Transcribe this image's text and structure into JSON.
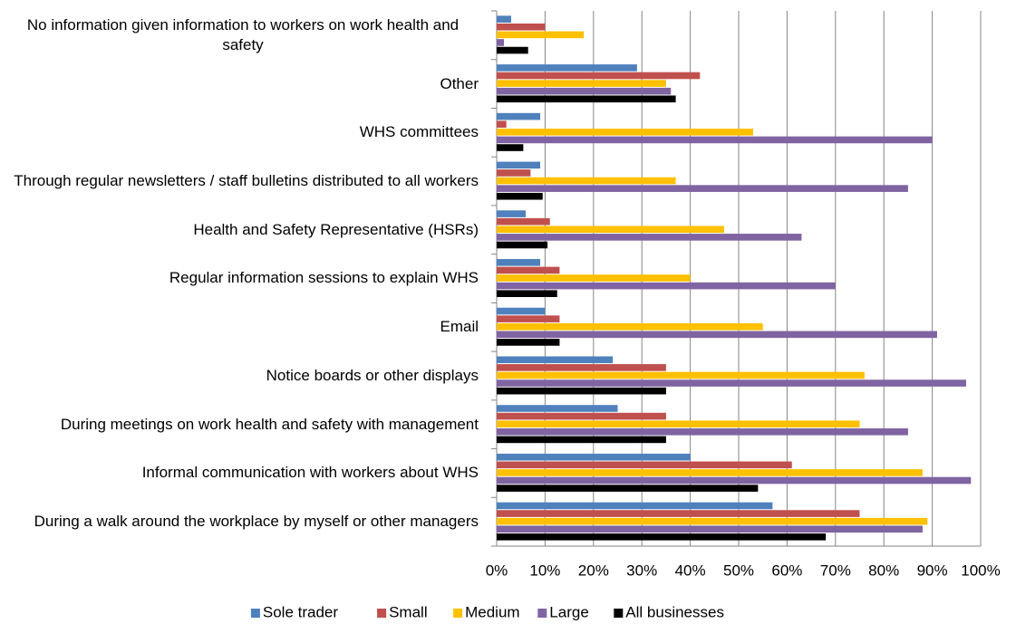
{
  "chart_data": {
    "type": "hbar",
    "categories": [
      "No information given information to workers on work health and safety",
      "Other",
      "WHS committees",
      "Through regular newsletters / staff bulletins distributed to all workers",
      "Health and Safety Representative (HSRs)",
      "Regular information sessions to explain WHS",
      "Email",
      "Notice boards or other displays",
      "During meetings on work health and safety with management",
      "Informal communication with workers about WHS",
      "During a walk around the workplace by myself or other managers"
    ],
    "series": [
      {
        "name": "Sole trader",
        "color": "#4f81bd",
        "values": [
          3,
          29,
          9,
          9,
          6,
          9,
          10,
          24,
          25,
          40,
          57
        ]
      },
      {
        "name": "Small",
        "color": "#c0504d",
        "values": [
          10,
          42,
          2,
          7,
          11,
          13,
          13,
          35,
          35,
          61,
          75
        ]
      },
      {
        "name": "Medium",
        "color": "#ffc000",
        "values": [
          18,
          35,
          53,
          37,
          47,
          40,
          55,
          76,
          75,
          88,
          89
        ]
      },
      {
        "name": "Large",
        "color": "#8064a2",
        "values": [
          1.5,
          36,
          90,
          85,
          63,
          70,
          91,
          97,
          85,
          98,
          88
        ]
      },
      {
        "name": "All businesses",
        "color": "#000000",
        "values": [
          6.5,
          37,
          5.5,
          9.5,
          10.5,
          12.5,
          13,
          35,
          35,
          54,
          68
        ]
      }
    ],
    "xlim": [
      0,
      100
    ],
    "xticks": [
      {
        "value": 0,
        "label": "0%"
      },
      {
        "value": 10,
        "label": "10%"
      },
      {
        "value": 20,
        "label": "20%"
      },
      {
        "value": 30,
        "label": "30%"
      },
      {
        "value": 40,
        "label": "40%"
      },
      {
        "value": 50,
        "label": "50%"
      },
      {
        "value": 60,
        "label": "60%"
      },
      {
        "value": 70,
        "label": "70%"
      },
      {
        "value": 80,
        "label": "80%"
      },
      {
        "value": 90,
        "label": "90%"
      },
      {
        "value": 100,
        "label": "100%"
      }
    ],
    "grid": true,
    "legend": "bottom"
  }
}
